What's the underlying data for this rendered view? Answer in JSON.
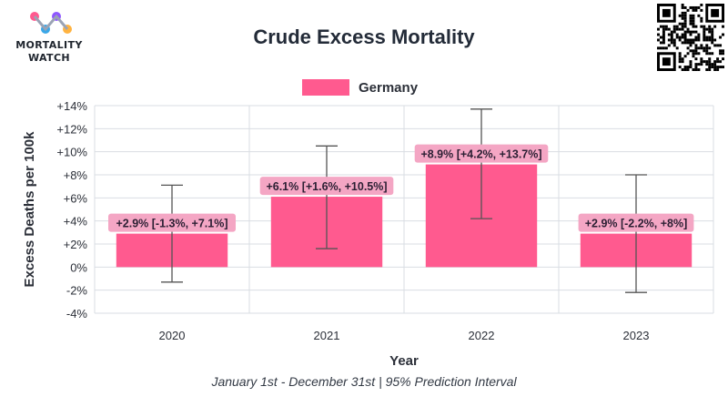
{
  "header": {
    "brand_line1": "MORTALITY",
    "brand_line2": "WATCH",
    "title": "Crude Excess Mortality",
    "subtitle": "January 1st - December 31st | 95% Prediction Interval"
  },
  "colors": {
    "bar": "#ff5a8f",
    "label_bg": "#f4a6c4",
    "error_bar": "#555555",
    "grid": "#d9dde3"
  },
  "chart_data": {
    "type": "bar",
    "title": "Crude Excess Mortality",
    "subtitle": "January 1st - December 31st | 95% Prediction Interval",
    "xlabel": "Year",
    "ylabel": "Excess Deaths per 100k",
    "categories": [
      "2020",
      "2021",
      "2022",
      "2023"
    ],
    "series": [
      {
        "name": "Germany",
        "values": [
          2.9,
          6.1,
          8.9,
          2.9
        ],
        "lower": [
          -1.3,
          1.6,
          4.2,
          -2.2
        ],
        "upper": [
          7.1,
          10.5,
          13.7,
          8.0
        ],
        "labels": [
          "+2.9% [-1.3%, +7.1%]",
          "+6.1% [+1.6%, +10.5%]",
          "+8.9% [+4.2%, +13.7%]",
          "+2.9% [-2.2%, +8%]"
        ]
      }
    ],
    "ylim": [
      -4,
      14
    ],
    "yticks": [
      -4,
      -2,
      0,
      2,
      4,
      6,
      8,
      10,
      12,
      14
    ],
    "ytick_labels": [
      "-4%",
      "-2%",
      "0%",
      "+2%",
      "+4%",
      "+6%",
      "+8%",
      "+10%",
      "+12%",
      "+14%"
    ],
    "grid": true,
    "legend_position": "top-center"
  }
}
